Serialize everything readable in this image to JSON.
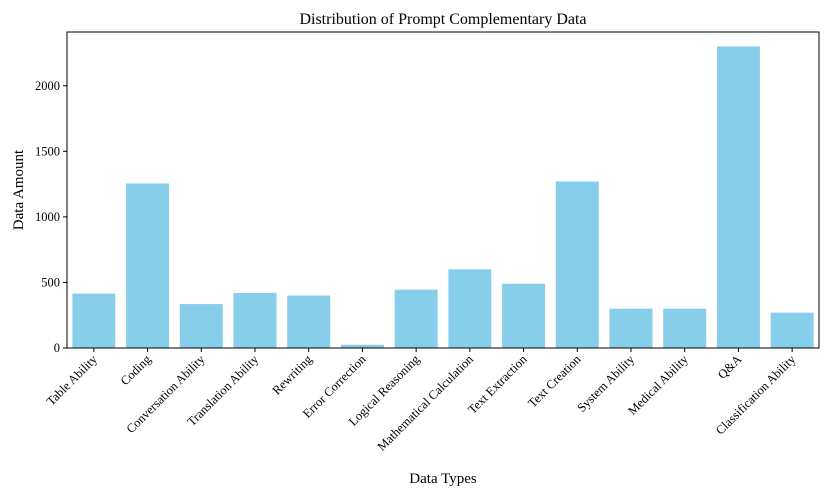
{
  "chart_data": {
    "type": "bar",
    "title": "Distribution of Prompt Complementary Data",
    "xlabel": "Data Types",
    "ylabel": "Data Amount",
    "ylim": [
      0,
      2410
    ],
    "yticks": [
      0,
      500,
      1000,
      1500,
      2000
    ],
    "categories": [
      "Table Ability",
      "Coding",
      "Conversation Ability",
      "Translation Ability",
      "Rewriting",
      "Error Correction",
      "Logical Reasoning",
      "Mathematical Calculation",
      "Text Extraction",
      "Text Creation",
      "System Ability",
      "Medical Ability",
      "Q&A",
      "Classification Ability"
    ],
    "values": [
      415,
      1255,
      335,
      420,
      400,
      25,
      445,
      600,
      490,
      1270,
      300,
      300,
      2300,
      270
    ],
    "bar_color": "#87CEEB",
    "grid": false,
    "legend": "none"
  }
}
